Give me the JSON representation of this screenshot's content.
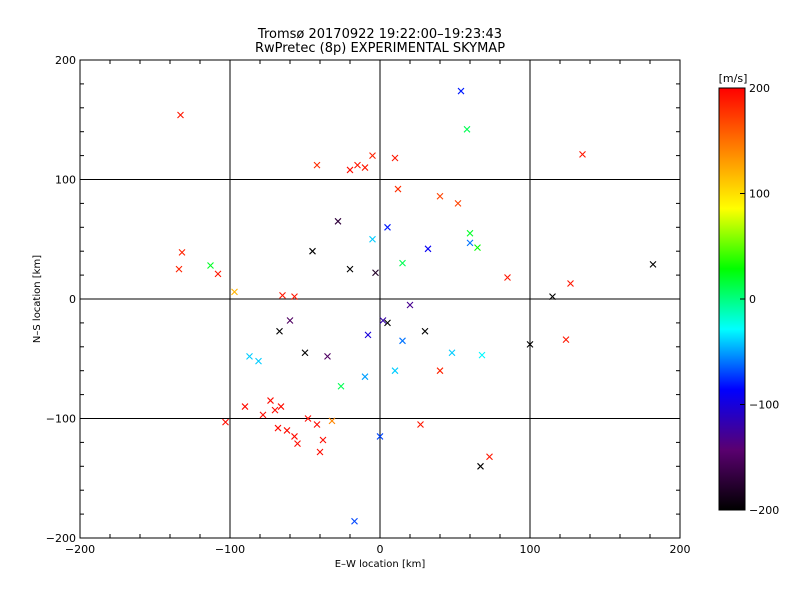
{
  "chart_data": {
    "type": "scatter",
    "title": "Tromsø 20170922 19:22:00–19:23:43",
    "subtitle": "RwPretec (8p) EXPERIMENTAL SKYMAP",
    "xlabel": "E–W location [km]",
    "ylabel": "N–S location [km]",
    "xlim": [
      -200,
      200
    ],
    "ylim": [
      -200,
      200
    ],
    "xticks": [
      -200,
      -100,
      0,
      100,
      200
    ],
    "yticks": [
      -200,
      -100,
      0,
      100,
      200
    ],
    "grid": true,
    "colorbar": {
      "label": "[m/s]",
      "range": [
        -200,
        200
      ],
      "ticks": [
        -200,
        -100,
        0,
        100,
        200
      ],
      "colormap": [
        "#000000",
        "#5a0070",
        "#0000ff",
        "#00ffff",
        "#00ff00",
        "#ffff00",
        "#ff8000",
        "#ff0000"
      ]
    },
    "marker_note": "small dots and × markers; color encodes velocity",
    "points_x": [
      {
        "x": -133,
        "y": 154,
        "v": 190
      },
      {
        "x": 54,
        "y": 174,
        "v": -80
      },
      {
        "x": 58,
        "y": 142,
        "v": 10
      },
      {
        "x": 135,
        "y": 121,
        "v": 190
      },
      {
        "x": -15,
        "y": 112,
        "v": 190
      },
      {
        "x": -10,
        "y": 110,
        "v": 190
      },
      {
        "x": -20,
        "y": 108,
        "v": 195
      },
      {
        "x": -42,
        "y": 112,
        "v": 180
      },
      {
        "x": 10,
        "y": 118,
        "v": 190
      },
      {
        "x": -5,
        "y": 120,
        "v": 185
      },
      {
        "x": 12,
        "y": 92,
        "v": 180
      },
      {
        "x": 40,
        "y": 86,
        "v": 170
      },
      {
        "x": 52,
        "y": 80,
        "v": 170
      },
      {
        "x": -113,
        "y": 28,
        "v": 20
      },
      {
        "x": -97,
        "y": 6,
        "v": 120
      },
      {
        "x": -132,
        "y": 39,
        "v": 185
      },
      {
        "x": -134,
        "y": 25,
        "v": 185
      },
      {
        "x": -108,
        "y": 21,
        "v": 190
      },
      {
        "x": -65,
        "y": 3,
        "v": 190
      },
      {
        "x": -57,
        "y": 2,
        "v": 190
      },
      {
        "x": 182,
        "y": 29,
        "v": -200
      },
      {
        "x": 115,
        "y": 2,
        "v": -200
      },
      {
        "x": 127,
        "y": 13,
        "v": 190
      },
      {
        "x": 85,
        "y": 18,
        "v": 190
      },
      {
        "x": 100,
        "y": -38,
        "v": -200
      },
      {
        "x": 124,
        "y": -34,
        "v": 190
      },
      {
        "x": -87,
        "y": -48,
        "v": -40
      },
      {
        "x": -81,
        "y": -52,
        "v": -40
      },
      {
        "x": -103,
        "y": -103,
        "v": 195
      },
      {
        "x": -90,
        "y": -90,
        "v": 195
      },
      {
        "x": -78,
        "y": -97,
        "v": 195
      },
      {
        "x": -73,
        "y": -85,
        "v": 195
      },
      {
        "x": -70,
        "y": -93,
        "v": 195
      },
      {
        "x": -66,
        "y": -90,
        "v": 195
      },
      {
        "x": -62,
        "y": -110,
        "v": 195
      },
      {
        "x": -57,
        "y": -115,
        "v": 195
      },
      {
        "x": -48,
        "y": -100,
        "v": 195
      },
      {
        "x": -42,
        "y": -105,
        "v": 195
      },
      {
        "x": -38,
        "y": -118,
        "v": 195
      },
      {
        "x": -32,
        "y": -102,
        "v": 140
      },
      {
        "x": -40,
        "y": -128,
        "v": 195
      },
      {
        "x": -55,
        "y": -121,
        "v": 195
      },
      {
        "x": -68,
        "y": -108,
        "v": 195
      },
      {
        "x": -26,
        "y": -73,
        "v": 10
      },
      {
        "x": -35,
        "y": -48,
        "v": -150
      },
      {
        "x": -50,
        "y": -45,
        "v": -200
      },
      {
        "x": -67,
        "y": -27,
        "v": -200
      },
      {
        "x": -60,
        "y": -18,
        "v": -150
      },
      {
        "x": 30,
        "y": -27,
        "v": -200
      },
      {
        "x": 27,
        "y": -105,
        "v": 190
      },
      {
        "x": 73,
        "y": -132,
        "v": 190
      },
      {
        "x": 67,
        "y": -140,
        "v": -200
      },
      {
        "x": 0,
        "y": -115,
        "v": -70
      },
      {
        "x": -17,
        "y": -186,
        "v": -70
      },
      {
        "x": 40,
        "y": -60,
        "v": 185
      },
      {
        "x": 5,
        "y": -20,
        "v": -200
      },
      {
        "x": 2,
        "y": -18,
        "v": -120
      },
      {
        "x": -8,
        "y": -30,
        "v": -100
      },
      {
        "x": 15,
        "y": -35,
        "v": -60
      },
      {
        "x": 20,
        "y": -5,
        "v": -130
      },
      {
        "x": -20,
        "y": 25,
        "v": -200
      },
      {
        "x": -45,
        "y": 40,
        "v": -200
      },
      {
        "x": -28,
        "y": 65,
        "v": -170
      },
      {
        "x": -3,
        "y": 22,
        "v": -180
      },
      {
        "x": 15,
        "y": 30,
        "v": 10
      },
      {
        "x": 32,
        "y": 42,
        "v": -90
      },
      {
        "x": 60,
        "y": 55,
        "v": 20
      },
      {
        "x": 65,
        "y": 43,
        "v": 30
      },
      {
        "x": 60,
        "y": 47,
        "v": -60
      },
      {
        "x": -5,
        "y": 50,
        "v": -40
      },
      {
        "x": 5,
        "y": 60,
        "v": -80
      },
      {
        "x": 10,
        "y": -60,
        "v": -40
      },
      {
        "x": -10,
        "y": -65,
        "v": -50
      },
      {
        "x": 48,
        "y": -45,
        "v": -40
      },
      {
        "x": 68,
        "y": -47,
        "v": -30
      }
    ]
  }
}
